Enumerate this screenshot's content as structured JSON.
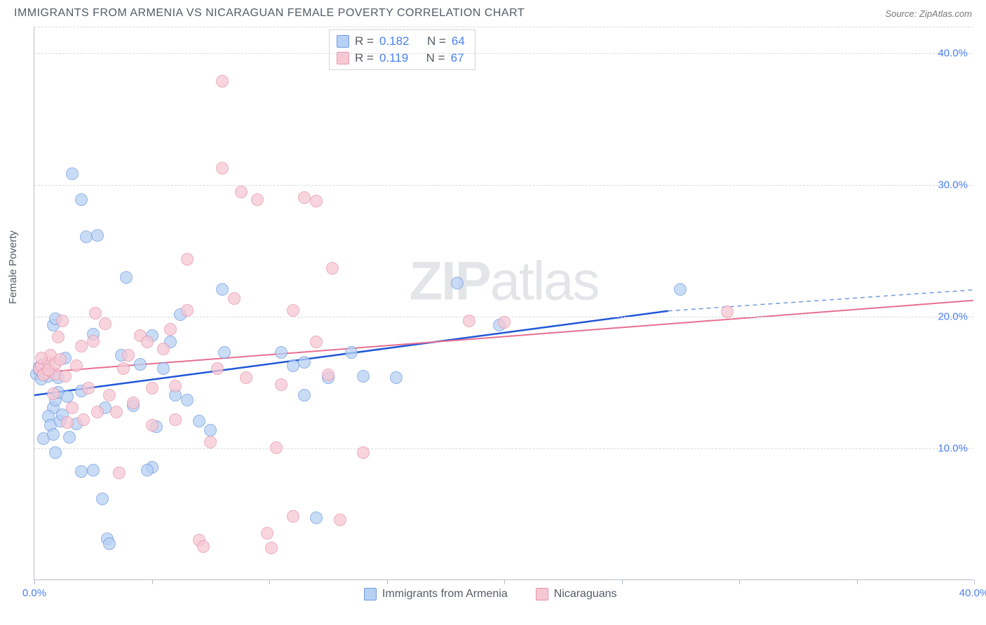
{
  "header": {
    "title": "IMMIGRANTS FROM ARMENIA VS NICARAGUAN FEMALE POVERTY CORRELATION CHART",
    "source_label": "Source:",
    "source_name": "ZipAtlas.com"
  },
  "chart": {
    "type": "scatter",
    "ylabel": "Female Poverty",
    "watermark_bold": "ZIP",
    "watermark_light": "atlas",
    "background_color": "#ffffff",
    "grid_color": "#d6dae0",
    "axis_color": "#b9bfc9",
    "x": {
      "min": 0.0,
      "max": 40.0,
      "ticks": [
        0.0,
        5.0,
        10.0,
        15.0,
        20.0,
        25.0,
        30.0,
        35.0,
        40.0
      ],
      "labeled_ticks": [
        0.0,
        40.0
      ],
      "suffix": "%"
    },
    "y": {
      "min": 0.0,
      "max": 42.0,
      "labeled_ticks": [
        10.0,
        20.0,
        30.0,
        40.0
      ],
      "suffix": "%"
    },
    "series": [
      {
        "id": "armenia",
        "label": "Immigrants from Armenia",
        "fill_color": "#b7d1f4",
        "stroke_color": "#6f9be0",
        "trend_color": "#1f57d6",
        "R": "0.182",
        "N": "64",
        "trend": {
          "y_at_xmin": 14.0,
          "y_at_solid_end": 20.4,
          "solid_end_x": 27.0,
          "y_at_xmax": 22.0
        },
        "points": [
          [
            0.1,
            15.6
          ],
          [
            0.2,
            16.1
          ],
          [
            0.3,
            15.2
          ],
          [
            0.2,
            15.9
          ],
          [
            0.4,
            16.3
          ],
          [
            0.6,
            15.4
          ],
          [
            0.8,
            19.3
          ],
          [
            0.8,
            13.0
          ],
          [
            0.4,
            10.7
          ],
          [
            0.6,
            12.4
          ],
          [
            0.7,
            11.7
          ],
          [
            0.8,
            11.0
          ],
          [
            0.9,
            13.6
          ],
          [
            1.0,
            14.2
          ],
          [
            0.9,
            19.8
          ],
          [
            1.1,
            12.0
          ],
          [
            1.0,
            15.3
          ],
          [
            1.3,
            16.8
          ],
          [
            1.4,
            13.9
          ],
          [
            1.2,
            12.5
          ],
          [
            1.6,
            30.8
          ],
          [
            2.0,
            28.8
          ],
          [
            2.2,
            26.0
          ],
          [
            2.7,
            26.1
          ],
          [
            2.5,
            18.6
          ],
          [
            2.0,
            14.3
          ],
          [
            1.8,
            11.8
          ],
          [
            2.0,
            8.2
          ],
          [
            2.5,
            8.3
          ],
          [
            2.9,
            6.1
          ],
          [
            3.1,
            3.1
          ],
          [
            3.2,
            2.7
          ],
          [
            3.0,
            13.0
          ],
          [
            3.9,
            22.9
          ],
          [
            3.7,
            17.0
          ],
          [
            4.5,
            16.3
          ],
          [
            5.0,
            18.5
          ],
          [
            5.2,
            11.6
          ],
          [
            5.5,
            16.0
          ],
          [
            5.8,
            18.0
          ],
          [
            6.0,
            14.0
          ],
          [
            6.2,
            20.1
          ],
          [
            5.0,
            8.5
          ],
          [
            4.8,
            8.3
          ],
          [
            6.5,
            13.6
          ],
          [
            7.0,
            12.0
          ],
          [
            7.5,
            11.3
          ],
          [
            8.0,
            22.0
          ],
          [
            8.1,
            17.2
          ],
          [
            10.5,
            17.2
          ],
          [
            11.0,
            16.2
          ],
          [
            11.5,
            16.5
          ],
          [
            12.0,
            4.7
          ],
          [
            12.5,
            15.3
          ],
          [
            13.5,
            17.2
          ],
          [
            14.0,
            15.4
          ],
          [
            15.4,
            15.3
          ],
          [
            11.5,
            14.0
          ],
          [
            18.0,
            22.5
          ],
          [
            19.8,
            19.3
          ],
          [
            27.5,
            22.0
          ],
          [
            4.2,
            13.2
          ],
          [
            0.9,
            9.6
          ],
          [
            1.5,
            10.8
          ]
        ]
      },
      {
        "id": "nicaraguans",
        "label": "Nicaraguans",
        "fill_color": "#f6c8d4",
        "stroke_color": "#e594ad",
        "trend_color": "#e86f90",
        "R": "0.119",
        "N": "67",
        "trend": {
          "y_at_xmin": 15.7,
          "y_at_solid_end": 21.2,
          "solid_end_x": 40.0,
          "y_at_xmax": 21.2
        },
        "points": [
          [
            0.2,
            16.0
          ],
          [
            0.3,
            16.2
          ],
          [
            0.5,
            15.7
          ],
          [
            0.4,
            15.5
          ],
          [
            0.6,
            16.5
          ],
          [
            0.8,
            14.1
          ],
          [
            0.7,
            17.0
          ],
          [
            0.9,
            15.6
          ],
          [
            1.0,
            18.4
          ],
          [
            0.6,
            15.9
          ],
          [
            1.2,
            19.6
          ],
          [
            1.3,
            15.4
          ],
          [
            1.4,
            11.9
          ],
          [
            1.6,
            13.0
          ],
          [
            1.8,
            16.2
          ],
          [
            2.0,
            17.7
          ],
          [
            2.1,
            12.1
          ],
          [
            2.3,
            14.5
          ],
          [
            2.5,
            18.1
          ],
          [
            2.6,
            20.2
          ],
          [
            2.7,
            12.7
          ],
          [
            3.0,
            19.4
          ],
          [
            3.2,
            14.0
          ],
          [
            3.5,
            12.7
          ],
          [
            3.6,
            8.1
          ],
          [
            3.8,
            16.0
          ],
          [
            4.0,
            17.0
          ],
          [
            4.2,
            13.4
          ],
          [
            4.5,
            18.5
          ],
          [
            4.8,
            18.0
          ],
          [
            5.0,
            14.5
          ],
          [
            5.0,
            11.7
          ],
          [
            5.5,
            17.5
          ],
          [
            5.8,
            19.0
          ],
          [
            6.0,
            14.7
          ],
          [
            6.0,
            12.1
          ],
          [
            6.5,
            20.4
          ],
          [
            6.5,
            24.3
          ],
          [
            7.0,
            3.0
          ],
          [
            7.2,
            2.5
          ],
          [
            7.5,
            10.4
          ],
          [
            7.8,
            16.0
          ],
          [
            8.0,
            37.8
          ],
          [
            8.0,
            31.2
          ],
          [
            8.5,
            21.3
          ],
          [
            8.8,
            29.4
          ],
          [
            9.0,
            15.3
          ],
          [
            9.5,
            28.8
          ],
          [
            9.9,
            3.5
          ],
          [
            10.1,
            2.4
          ],
          [
            10.3,
            10.0
          ],
          [
            10.5,
            14.8
          ],
          [
            11.0,
            20.4
          ],
          [
            11.0,
            4.8
          ],
          [
            11.5,
            29.0
          ],
          [
            12.0,
            28.7
          ],
          [
            12.0,
            18.0
          ],
          [
            12.5,
            15.5
          ],
          [
            12.7,
            23.6
          ],
          [
            13.0,
            4.5
          ],
          [
            14.0,
            9.6
          ],
          [
            18.5,
            19.6
          ],
          [
            20.0,
            19.5
          ],
          [
            29.5,
            20.3
          ],
          [
            0.3,
            16.8
          ],
          [
            0.9,
            16.4
          ],
          [
            1.1,
            16.7
          ]
        ]
      }
    ],
    "legend_stats_labels": {
      "R": "R =",
      "N": "N ="
    }
  }
}
